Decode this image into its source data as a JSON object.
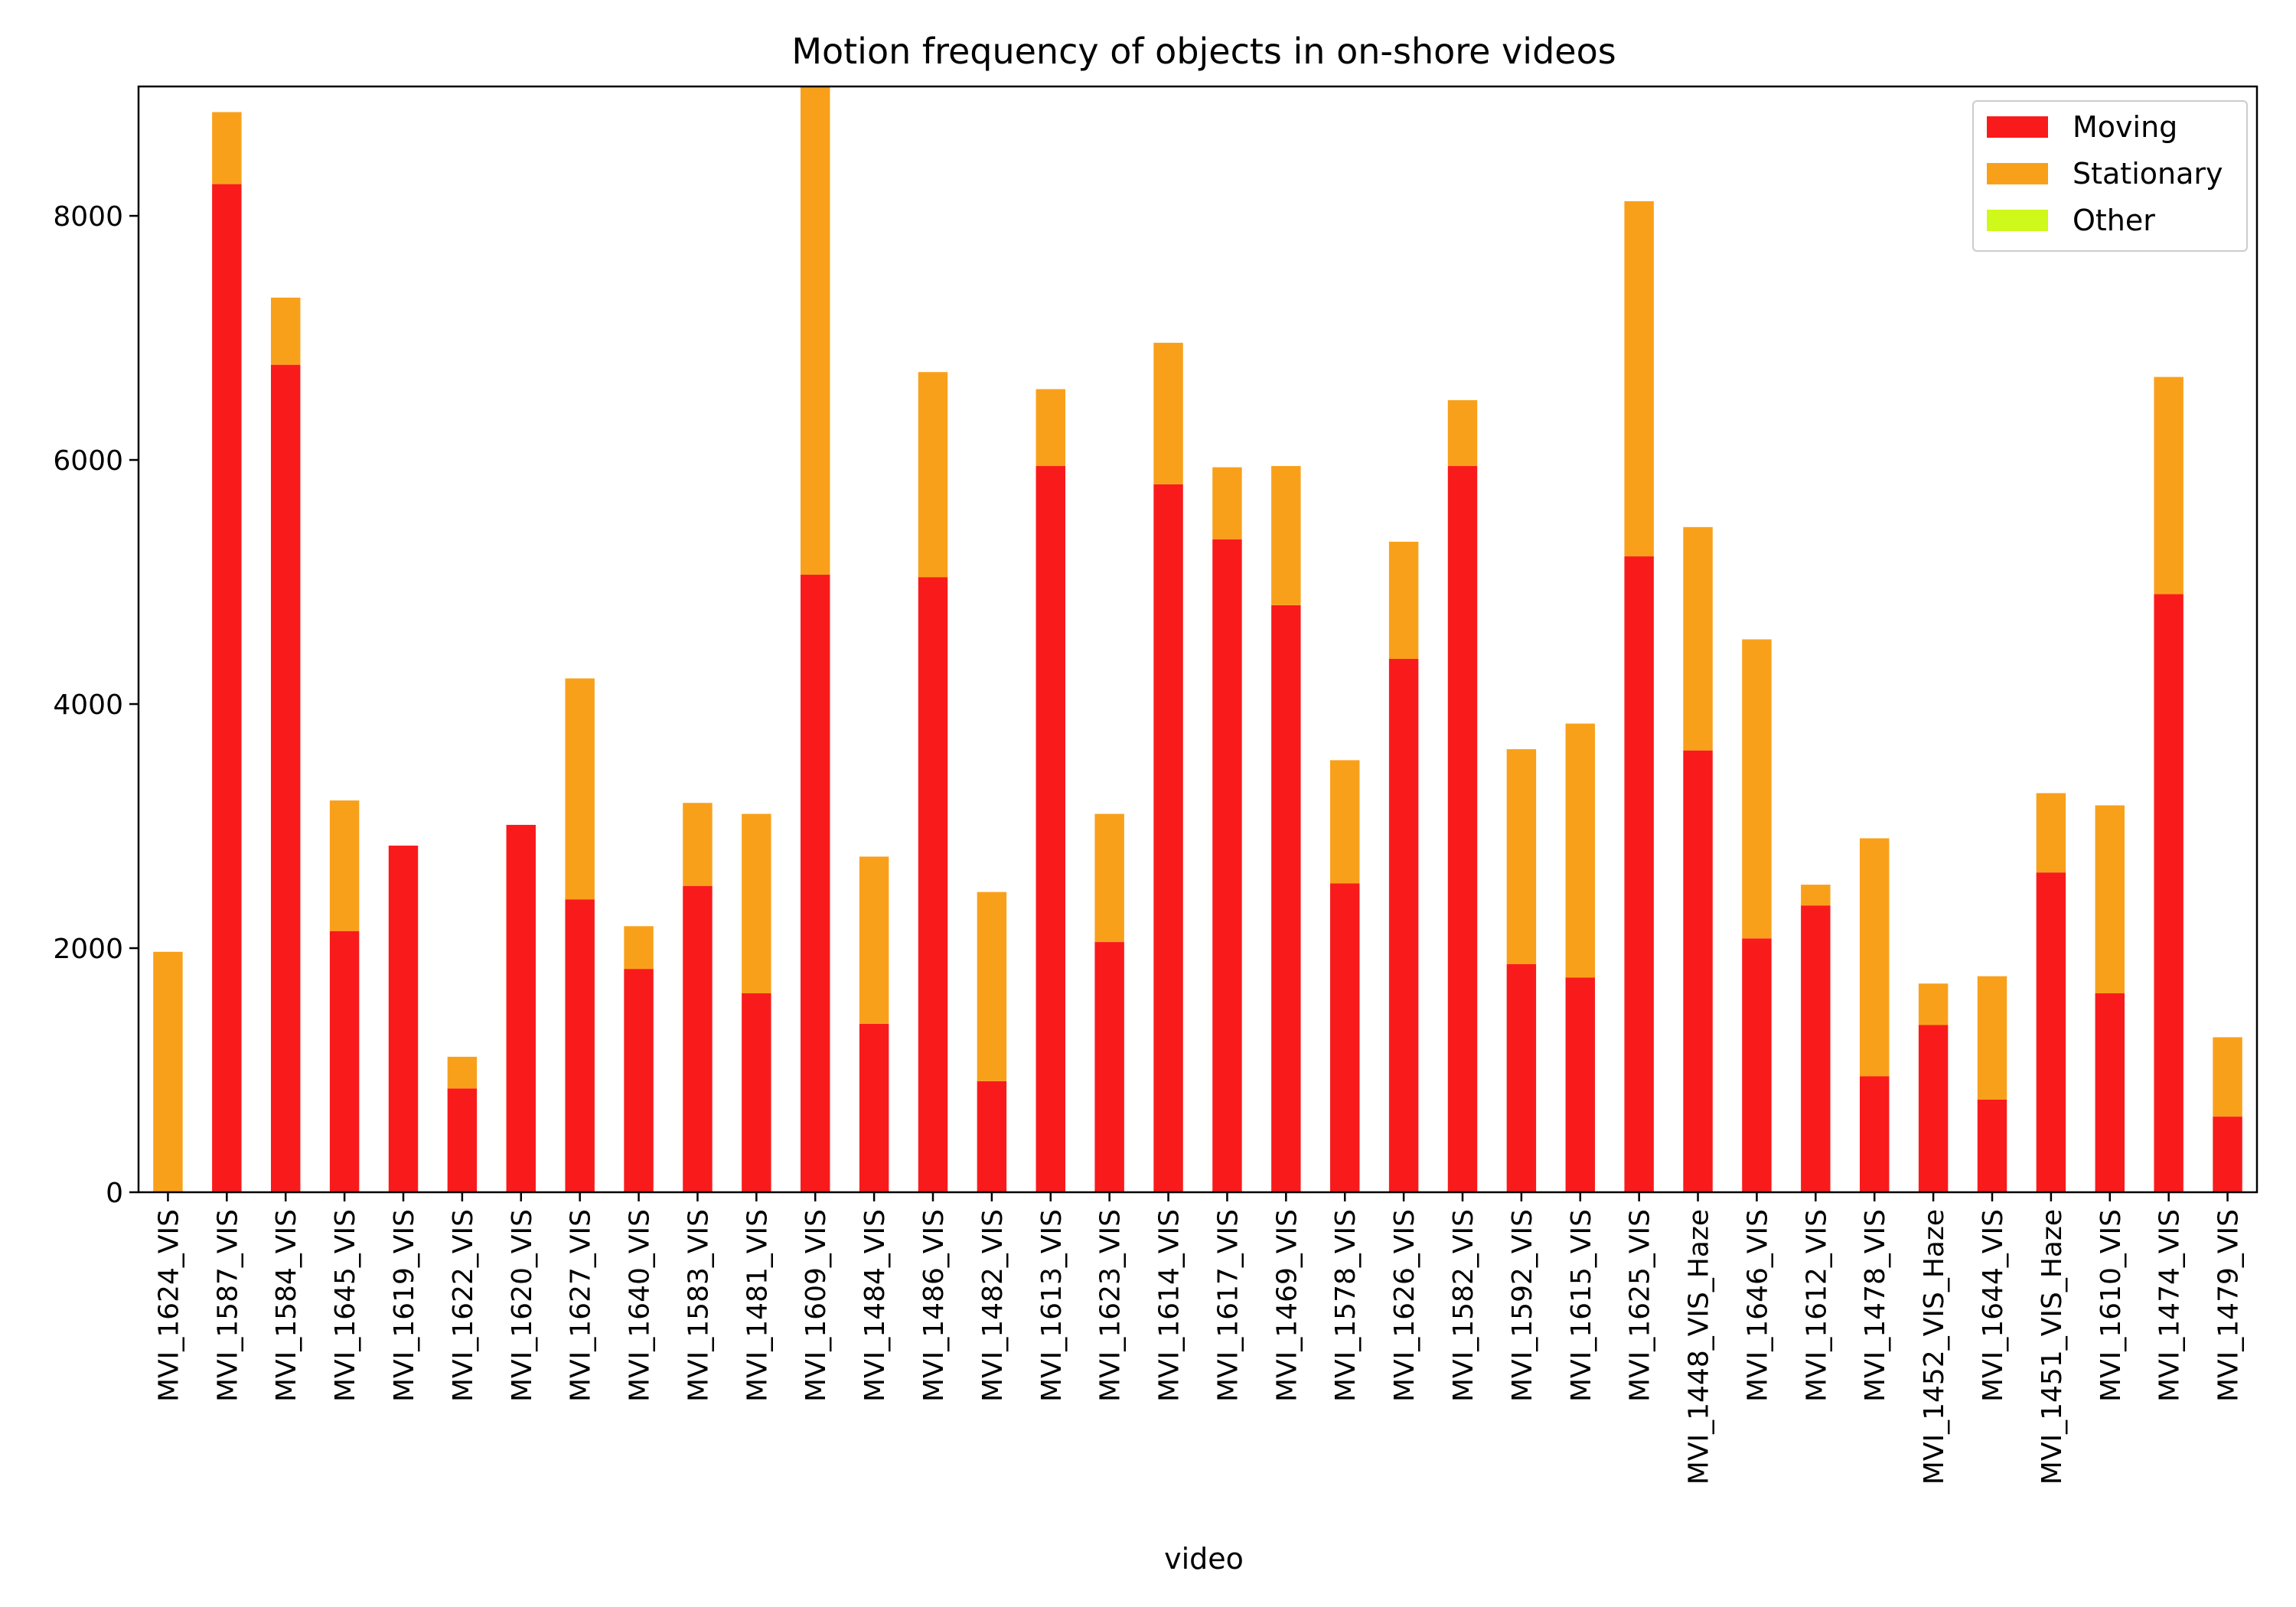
{
  "chart_data": {
    "type": "bar",
    "stacked": true,
    "title": "Motion frequency of objects in on-shore videos",
    "xlabel": "video",
    "ylabel": "",
    "ylim": [
      0,
      9060
    ],
    "yticks": [
      0,
      2000,
      4000,
      6000,
      8000
    ],
    "grid": false,
    "legend_position": "top-right",
    "categories": [
      "MVI_1624_VIS",
      "MVI_1587_VIS",
      "MVI_1584_VIS",
      "MVI_1645_VIS",
      "MVI_1619_VIS",
      "MVI_1622_VIS",
      "MVI_1620_VIS",
      "MVI_1627_VIS",
      "MVI_1640_VIS",
      "MVI_1583_VIS",
      "MVI_1481_VIS",
      "MVI_1609_VIS",
      "MVI_1484_VIS",
      "MVI_1486_VIS",
      "MVI_1482_VIS",
      "MVI_1613_VIS",
      "MVI_1623_VIS",
      "MVI_1614_VIS",
      "MVI_1617_VIS",
      "MVI_1469_VIS",
      "MVI_1578_VIS",
      "MVI_1626_VIS",
      "MVI_1582_VIS",
      "MVI_1592_VIS",
      "MVI_1615_VIS",
      "MVI_1625_VIS",
      "MVI_1448_VIS_Haze",
      "MVI_1646_VIS",
      "MVI_1612_VIS",
      "MVI_1478_VIS",
      "MVI_1452_VIS_Haze",
      "MVI_1644_VIS",
      "MVI_1451_VIS_Haze",
      "MVI_1610_VIS",
      "MVI_1474_VIS",
      "MVI_1479_VIS"
    ],
    "series": [
      {
        "name": "Moving",
        "color": "#f91b1b",
        "values": [
          0,
          8260,
          6780,
          2140,
          2840,
          850,
          3010,
          2400,
          1830,
          2510,
          1630,
          5060,
          1380,
          5040,
          910,
          5950,
          2050,
          5800,
          5350,
          4810,
          2530,
          4370,
          5950,
          1870,
          1760,
          5210,
          3620,
          2080,
          2350,
          950,
          1370,
          760,
          2620,
          1630,
          4900,
          620
        ]
      },
      {
        "name": "Stationary",
        "color": "#f9a01b",
        "values": [
          1970,
          590,
          550,
          1070,
          0,
          260,
          0,
          1810,
          350,
          680,
          1470,
          4000,
          1370,
          1680,
          1550,
          630,
          1050,
          1160,
          590,
          1140,
          1010,
          960,
          540,
          1760,
          2080,
          2910,
          1830,
          2450,
          170,
          1950,
          340,
          1010,
          650,
          1540,
          1780,
          650
        ]
      },
      {
        "name": "Other",
        "color": "#cff91b",
        "values": [
          0,
          0,
          0,
          0,
          0,
          0,
          0,
          0,
          0,
          0,
          0,
          0,
          0,
          0,
          0,
          0,
          0,
          0,
          0,
          0,
          0,
          0,
          0,
          0,
          0,
          0,
          0,
          0,
          0,
          0,
          0,
          0,
          0,
          0,
          0,
          0
        ]
      }
    ]
  }
}
